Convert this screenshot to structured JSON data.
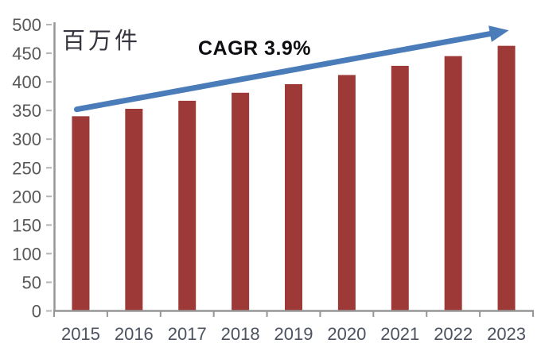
{
  "chart_data": {
    "type": "bar",
    "title": "",
    "unit_label": "百万件",
    "annotation": "CAGR 3.9%",
    "categories": [
      "2015",
      "2016",
      "2017",
      "2018",
      "2019",
      "2020",
      "2021",
      "2022",
      "2023"
    ],
    "values": [
      340,
      353,
      367,
      381,
      396,
      412,
      428,
      445,
      463
    ],
    "yticks": [
      0,
      50,
      100,
      150,
      200,
      250,
      300,
      350,
      400,
      450,
      500
    ],
    "ylim": [
      0,
      500
    ],
    "xlabel": "",
    "ylabel": "",
    "grid": false,
    "legend": null,
    "trend_arrow": {
      "label": "CAGR 3.9%",
      "start_category": "2015",
      "end_category": "2023",
      "start_value": 352,
      "end_value": 490
    },
    "colors": {
      "bar": "#9d3a38",
      "arrow": "#4a7cba",
      "axis": "#969696",
      "tick": "#b5b5b5",
      "y_label": "#58585a",
      "x_label": "#4c5260",
      "annotation": "#0d0d12",
      "unit_label": "#35353f"
    }
  }
}
